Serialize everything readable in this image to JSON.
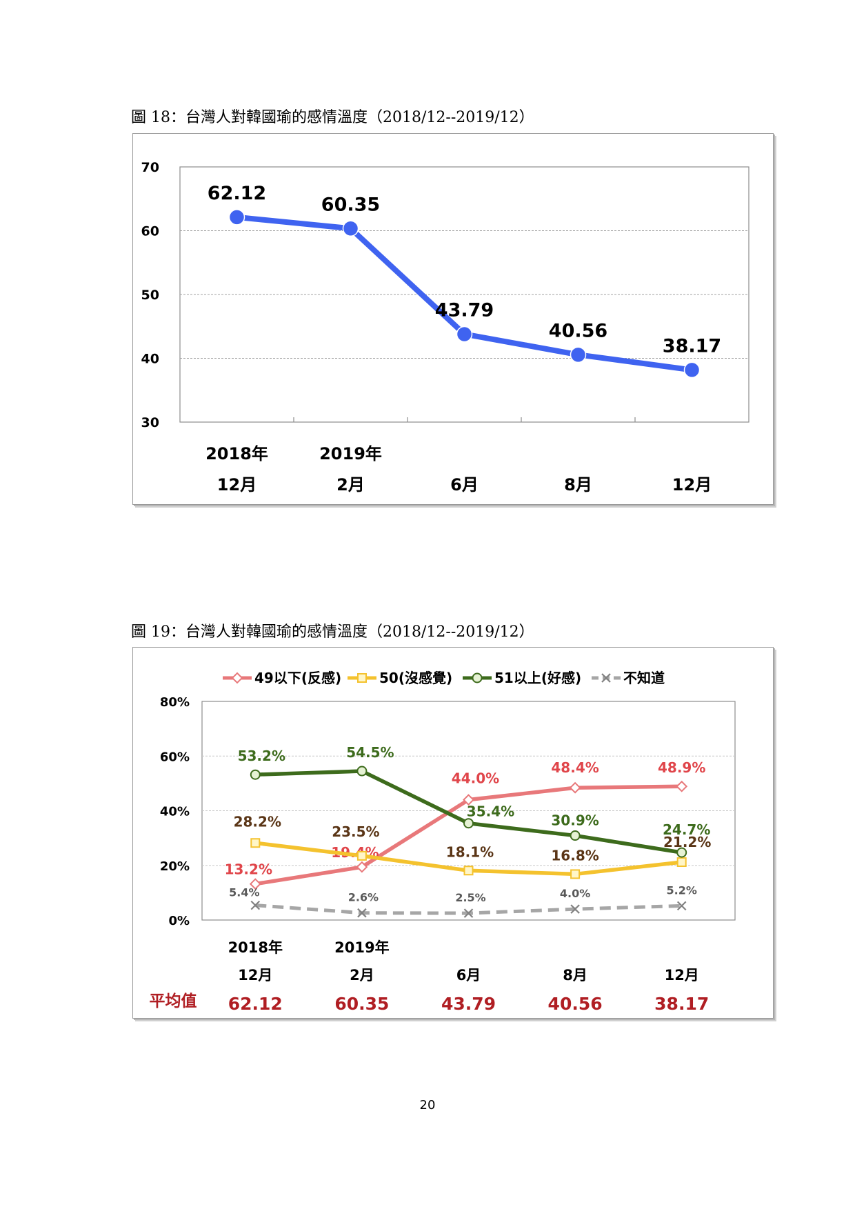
{
  "chart_data": [
    {
      "type": "line",
      "title": "圖 18：台灣人對韓國瑜的感情溫度（2018/12--2019/12）",
      "categories": [
        {
          "year": "2018年",
          "month": "12月"
        },
        {
          "year": "2019年",
          "month": "2月"
        },
        {
          "year": "",
          "month": "6月"
        },
        {
          "year": "",
          "month": "8月"
        },
        {
          "year": "",
          "month": "12月"
        }
      ],
      "values": [
        62.12,
        60.35,
        43.79,
        40.56,
        38.17
      ],
      "value_labels": [
        "62.12",
        "60.35",
        "43.79",
        "40.56",
        "38.17"
      ],
      "ylim": [
        30,
        70
      ],
      "yticks": [
        "30",
        "40",
        "50",
        "60",
        "70"
      ],
      "grid": true,
      "color": "#3f63f0"
    },
    {
      "type": "line",
      "title": "圖 19：台灣人對韓國瑜的感情溫度（2018/12--2019/12）",
      "categories": [
        {
          "year": "2018年",
          "month": "12月"
        },
        {
          "year": "2019年",
          "month": "2月"
        },
        {
          "year": "",
          "month": "6月"
        },
        {
          "year": "",
          "month": "8月"
        },
        {
          "year": "",
          "month": "12月"
        }
      ],
      "ylim": [
        0,
        80
      ],
      "yticks": [
        "0%",
        "20%",
        "40%",
        "60%",
        "80%"
      ],
      "grid": true,
      "legend": "top",
      "series": [
        {
          "name": "49以下(反感)",
          "values": [
            13.2,
            19.4,
            44.0,
            48.4,
            48.9
          ],
          "labels": [
            "13.2%",
            "19.4%",
            "44.0%",
            "48.4%",
            "48.9%"
          ],
          "color": "#e8787a",
          "label_color": "#e0454a",
          "marker": "diamond"
        },
        {
          "name": "50(沒感覺)",
          "values": [
            28.2,
            23.5,
            18.1,
            16.8,
            21.2
          ],
          "labels": [
            "28.2%",
            "23.5%",
            "18.1%",
            "16.8%",
            "21.2%"
          ],
          "color": "#f4c22e",
          "label_color": "#5a3516",
          "marker": "square"
        },
        {
          "name": "51以上(好感)",
          "values": [
            53.2,
            54.5,
            35.4,
            30.9,
            24.7
          ],
          "labels": [
            "53.2%",
            "54.5%",
            "35.4%",
            "30.9%",
            "24.7%"
          ],
          "color": "#3d6b1c",
          "label_color": "#3d6b1c",
          "marker": "circle"
        },
        {
          "name": "不知道",
          "values": [
            5.4,
            2.6,
            2.5,
            4.0,
            5.2
          ],
          "labels": [
            "5.4%",
            "2.6%",
            "2.5%",
            "4.0%",
            "5.2%"
          ],
          "color": "#a6a6a6",
          "label_color": "#595959",
          "marker": "x"
        }
      ],
      "average": {
        "label": "平均值",
        "values": [
          "62.12",
          "60.35",
          "43.79",
          "40.56",
          "38.17"
        ],
        "color": "#b01e23"
      }
    }
  ],
  "page_number": "20"
}
